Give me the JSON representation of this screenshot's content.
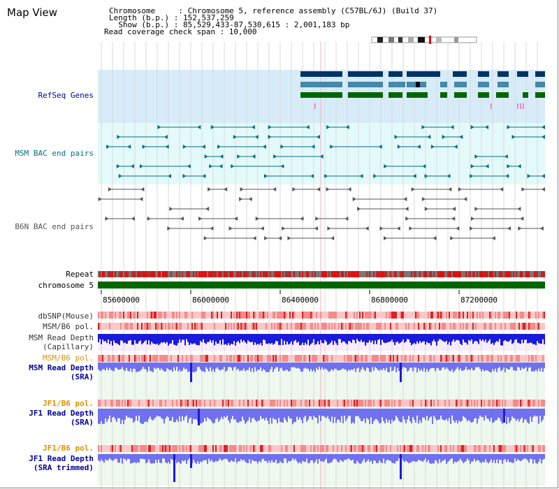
{
  "title": "Map View",
  "header": {
    "line1": "Chromosome     : Chromosome 5, reference assembly (C57BL/6J) (Build 37)",
    "line2": "Length (b.p.) : 152,537,259",
    "line3": "  Show (b.p.) : 85,529,433-87,530,615 : 2,001,183 bp",
    "line4": "Read coverage check span : 10,000"
  },
  "tracks": {
    "refseq": "RefSeq Genes",
    "msm_bac": "MSM BAC end pairs",
    "b6n_bac": "B6N BAC end pairs",
    "repeat": "Repeat",
    "chromosome": "chromosome 5",
    "dbsnp": "dbSNP(Mouse)",
    "msm_b6_pol_1": "MSM/B6 pol.",
    "msm_depth_cap_1": "MSM Read Depth",
    "msm_depth_cap_2": "(Capillary)",
    "msm_b6_pol_2": "MSM/B6 pol.",
    "msm_depth_sra_1": "MSM Read Depth",
    "msm_depth_sra_2": "(SRA)",
    "jf1_b6_pol_1": "JF1/B6 pol.",
    "jf1_depth_sra_1": "JF1 Read Depth",
    "jf1_depth_sra_2": "(SRA)",
    "jf1_b6_pol_2": "JF1/B6 pol.",
    "jf1_depth_trim_1": "JF1 Read Depth",
    "jf1_depth_trim_2": "(SRA trimmed)"
  },
  "axis": {
    "ticks": [
      "85600000",
      "86000000",
      "86400000",
      "86800000",
      "87200000"
    ]
  },
  "colors": {
    "refseq_bg": "#d7ecf8",
    "msm_bg": "#e4fafa",
    "refseq_blue": "#003366",
    "refseq_steel": "#4488aa",
    "refseq_green": "#006600",
    "msm_feature": "#006f7f",
    "b6n_feature": "#555555",
    "chrom_green": "#006600",
    "label_blue": "#000099",
    "label_teal": "#006f7f",
    "label_orange": "#e09000",
    "depth_blue": "#1a1adc",
    "depth_light": "#7070f0"
  }
}
